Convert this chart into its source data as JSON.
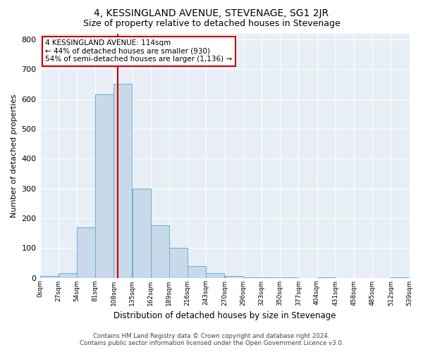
{
  "title": "4, KESSINGLAND AVENUE, STEVENAGE, SG1 2JR",
  "subtitle": "Size of property relative to detached houses in Stevenage",
  "xlabel": "Distribution of detached houses by size in Stevenage",
  "ylabel": "Number of detached properties",
  "bin_labels": [
    "0sqm",
    "27sqm",
    "54sqm",
    "81sqm",
    "108sqm",
    "135sqm",
    "162sqm",
    "189sqm",
    "216sqm",
    "243sqm",
    "270sqm",
    "296sqm",
    "323sqm",
    "350sqm",
    "377sqm",
    "404sqm",
    "431sqm",
    "458sqm",
    "485sqm",
    "512sqm",
    "539sqm"
  ],
  "bar_values": [
    5,
    15,
    170,
    615,
    650,
    300,
    175,
    100,
    40,
    15,
    5,
    2,
    2,
    1,
    0,
    1,
    0,
    0,
    0,
    1
  ],
  "bar_color": "#c8daea",
  "bar_edge_color": "#6aaed6",
  "vline_x": 114,
  "bin_width": 27,
  "ylim": [
    0,
    820
  ],
  "yticks": [
    0,
    100,
    200,
    300,
    400,
    500,
    600,
    700,
    800
  ],
  "annotation_text": "4 KESSINGLAND AVENUE: 114sqm\n← 44% of detached houses are smaller (930)\n54% of semi-detached houses are larger (1,136) →",
  "annotation_box_color": "#ffffff",
  "annotation_box_edge_color": "#cc0000",
  "footer_line1": "Contains HM Land Registry data © Crown copyright and database right 2024.",
  "footer_line2": "Contains public sector information licensed under the Open Government Licence v3.0.",
  "background_color": "#e8eef5",
  "title_fontsize": 10,
  "subtitle_fontsize": 9,
  "title_fontweight": "normal"
}
